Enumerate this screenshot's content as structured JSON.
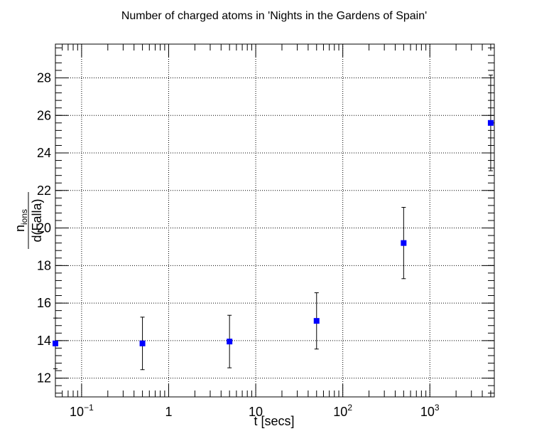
{
  "chart_data": {
    "type": "scatter",
    "title": "Number of charged atoms in 'Nights in the Gardens of Spain'",
    "xlabel": "t [secs]",
    "ylabel": {
      "numerator": "n",
      "numerator_subscript": "ions",
      "denominator": "d(Falla)"
    },
    "x_scale": "log",
    "xlim": [
      0.05,
      5500
    ],
    "ylim": [
      11,
      29.8
    ],
    "grid": true,
    "x_ticks": [
      {
        "value": 0.1,
        "base": "10",
        "exp": "−1"
      },
      {
        "value": 1,
        "base": "1",
        "exp": ""
      },
      {
        "value": 10,
        "base": "10",
        "exp": ""
      },
      {
        "value": 100,
        "base": "10",
        "exp": "2"
      },
      {
        "value": 1000,
        "base": "10",
        "exp": "3"
      }
    ],
    "y_ticks": [
      "12",
      "14",
      "16",
      "18",
      "20",
      "22",
      "24",
      "26",
      "28"
    ],
    "marker_color": "#0000ff",
    "points": [
      {
        "x": 0.05,
        "y": 13.85,
        "yerr": 1.35
      },
      {
        "x": 0.5,
        "y": 13.85,
        "yerr": 1.4
      },
      {
        "x": 5,
        "y": 13.95,
        "yerr": 1.4
      },
      {
        "x": 50,
        "y": 15.05,
        "yerr": 1.5
      },
      {
        "x": 500,
        "y": 19.2,
        "yerr": 1.9
      },
      {
        "x": 5000,
        "y": 25.6,
        "yerr": 2.55
      }
    ]
  }
}
